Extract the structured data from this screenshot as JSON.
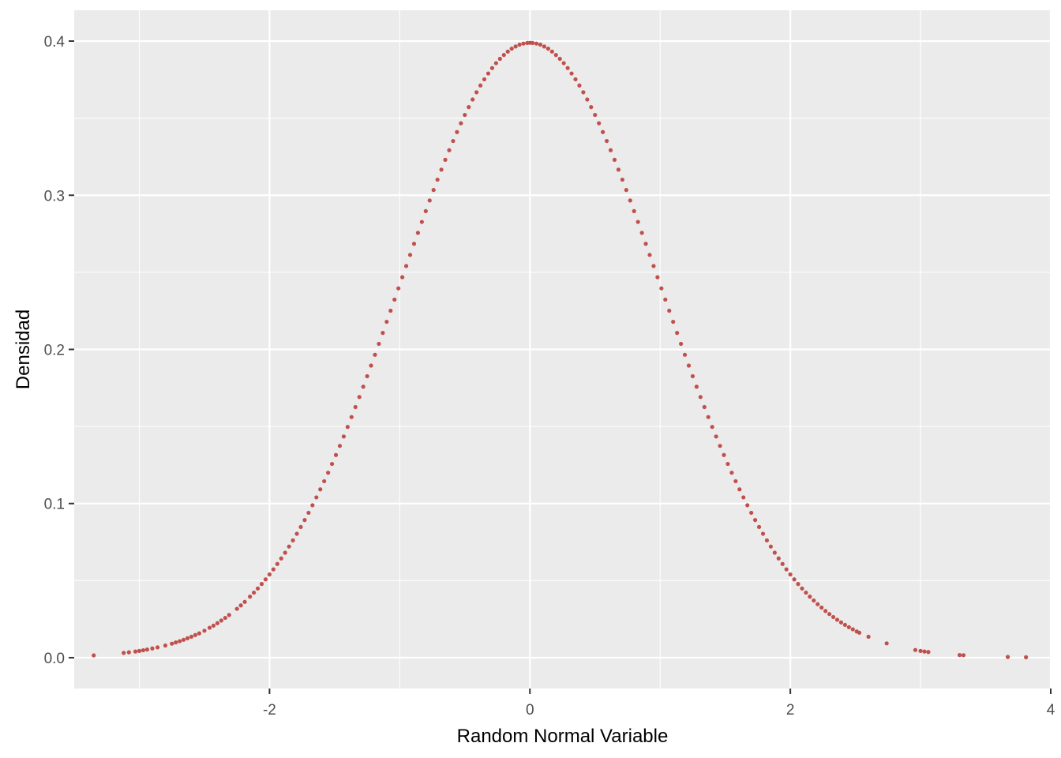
{
  "chart_data": {
    "type": "scatter",
    "title": "",
    "xlabel": "Random Normal Variable",
    "ylabel": "Densidad",
    "xlim": [
      -3.5,
      4.0
    ],
    "ylim": [
      -0.02,
      0.42
    ],
    "x_ticks": [
      -2,
      0,
      2,
      4
    ],
    "x_tick_labels": [
      "-2",
      "0",
      "2",
      "4"
    ],
    "y_ticks": [
      0.0,
      0.1,
      0.2,
      0.3,
      0.4
    ],
    "y_tick_labels": [
      "0.0",
      "0.1",
      "0.2",
      "0.3",
      "0.4"
    ],
    "grid": true,
    "legend": "none",
    "colors": {
      "panel_background": "#ebebeb",
      "grid_major": "#ffffff",
      "point": "#c0504d",
      "tick_label": "#4d4d4d",
      "axis_title": "#000000"
    },
    "series": [
      {
        "values_description_free": true,
        "points": [
          [
            -3.35,
            0.0015
          ],
          [
            -3.12,
            0.0031
          ],
          [
            -3.08,
            0.0035
          ],
          [
            -3.03,
            0.004
          ],
          [
            -3.0,
            0.0044
          ],
          [
            -2.97,
            0.0048
          ],
          [
            -2.94,
            0.0053
          ],
          [
            -2.9,
            0.006
          ],
          [
            -2.86,
            0.0067
          ],
          [
            -2.8,
            0.0079
          ],
          [
            -2.75,
            0.0091
          ],
          [
            -2.72,
            0.0099
          ],
          [
            -2.69,
            0.0107
          ],
          [
            -2.66,
            0.0116
          ],
          [
            -2.63,
            0.0126
          ],
          [
            -2.6,
            0.0136
          ],
          [
            -2.57,
            0.0147
          ],
          [
            -2.54,
            0.0158
          ],
          [
            -2.5,
            0.0175
          ],
          [
            -2.46,
            0.0194
          ],
          [
            -2.43,
            0.0208
          ],
          [
            -2.4,
            0.0224
          ],
          [
            -2.37,
            0.0241
          ],
          [
            -2.34,
            0.0258
          ],
          [
            -2.31,
            0.0277
          ],
          [
            -2.25,
            0.0317
          ],
          [
            -2.22,
            0.0339
          ],
          [
            -2.19,
            0.0362
          ],
          [
            -2.15,
            0.0396
          ],
          [
            -2.12,
            0.0422
          ],
          [
            -2.09,
            0.0449
          ],
          [
            -2.06,
            0.0478
          ],
          [
            -2.03,
            0.0508
          ],
          [
            -2.0,
            0.054
          ],
          [
            -1.97,
            0.0573
          ],
          [
            -1.94,
            0.0608
          ],
          [
            -1.91,
            0.0644
          ],
          [
            -1.88,
            0.0681
          ],
          [
            -1.85,
            0.0721
          ],
          [
            -1.82,
            0.0761
          ],
          [
            -1.79,
            0.0804
          ],
          [
            -1.76,
            0.0848
          ],
          [
            -1.73,
            0.0893
          ],
          [
            -1.7,
            0.094
          ],
          [
            -1.67,
            0.0989
          ],
          [
            -1.64,
            0.104
          ],
          [
            -1.61,
            0.1092
          ],
          [
            -1.58,
            0.1145
          ],
          [
            -1.55,
            0.12
          ],
          [
            -1.52,
            0.1257
          ],
          [
            -1.49,
            0.1315
          ],
          [
            -1.46,
            0.1374
          ],
          [
            -1.43,
            0.1435
          ],
          [
            -1.4,
            0.1497
          ],
          [
            -1.37,
            0.1561
          ],
          [
            -1.34,
            0.1626
          ],
          [
            -1.31,
            0.1691
          ],
          [
            -1.28,
            0.1758
          ],
          [
            -1.25,
            0.1826
          ],
          [
            -1.22,
            0.1895
          ],
          [
            -1.19,
            0.1965
          ],
          [
            -1.16,
            0.2036
          ],
          [
            -1.13,
            0.2107
          ],
          [
            -1.1,
            0.2179
          ],
          [
            -1.07,
            0.2251
          ],
          [
            -1.04,
            0.2323
          ],
          [
            -1.01,
            0.2396
          ],
          [
            -0.98,
            0.2468
          ],
          [
            -0.95,
            0.2541
          ],
          [
            -0.92,
            0.2613
          ],
          [
            -0.89,
            0.2685
          ],
          [
            -0.86,
            0.2756
          ],
          [
            -0.83,
            0.2827
          ],
          [
            -0.8,
            0.2897
          ],
          [
            -0.77,
            0.2966
          ],
          [
            -0.74,
            0.3034
          ],
          [
            -0.71,
            0.3101
          ],
          [
            -0.68,
            0.3166
          ],
          [
            -0.65,
            0.323
          ],
          [
            -0.62,
            0.3292
          ],
          [
            -0.59,
            0.3352
          ],
          [
            -0.56,
            0.341
          ],
          [
            -0.53,
            0.3467
          ],
          [
            -0.5,
            0.3521
          ],
          [
            -0.47,
            0.3572
          ],
          [
            -0.44,
            0.3621
          ],
          [
            -0.41,
            0.3668
          ],
          [
            -0.38,
            0.3712
          ],
          [
            -0.35,
            0.3752
          ],
          [
            -0.32,
            0.379
          ],
          [
            -0.29,
            0.3825
          ],
          [
            -0.26,
            0.3857
          ],
          [
            -0.23,
            0.3885
          ],
          [
            -0.2,
            0.391
          ],
          [
            -0.17,
            0.3932
          ],
          [
            -0.14,
            0.3951
          ],
          [
            -0.11,
            0.3965
          ],
          [
            -0.08,
            0.3977
          ],
          [
            -0.05,
            0.3984
          ],
          [
            -0.02,
            0.3988
          ],
          [
            0.0,
            0.3989
          ],
          [
            0.02,
            0.3988
          ],
          [
            0.05,
            0.3984
          ],
          [
            0.08,
            0.3977
          ],
          [
            0.11,
            0.3965
          ],
          [
            0.14,
            0.3951
          ],
          [
            0.17,
            0.3932
          ],
          [
            0.2,
            0.391
          ],
          [
            0.23,
            0.3885
          ],
          [
            0.26,
            0.3857
          ],
          [
            0.29,
            0.3825
          ],
          [
            0.32,
            0.379
          ],
          [
            0.35,
            0.3752
          ],
          [
            0.38,
            0.3712
          ],
          [
            0.41,
            0.3668
          ],
          [
            0.44,
            0.3621
          ],
          [
            0.47,
            0.3572
          ],
          [
            0.5,
            0.3521
          ],
          [
            0.53,
            0.3467
          ],
          [
            0.56,
            0.341
          ],
          [
            0.59,
            0.3352
          ],
          [
            0.62,
            0.3292
          ],
          [
            0.65,
            0.323
          ],
          [
            0.68,
            0.3166
          ],
          [
            0.71,
            0.3101
          ],
          [
            0.74,
            0.3034
          ],
          [
            0.77,
            0.2966
          ],
          [
            0.8,
            0.2897
          ],
          [
            0.83,
            0.2827
          ],
          [
            0.86,
            0.2756
          ],
          [
            0.89,
            0.2685
          ],
          [
            0.92,
            0.2613
          ],
          [
            0.95,
            0.2541
          ],
          [
            0.98,
            0.2468
          ],
          [
            1.01,
            0.2396
          ],
          [
            1.04,
            0.2323
          ],
          [
            1.07,
            0.2251
          ],
          [
            1.1,
            0.2179
          ],
          [
            1.13,
            0.2107
          ],
          [
            1.16,
            0.2036
          ],
          [
            1.19,
            0.1965
          ],
          [
            1.22,
            0.1895
          ],
          [
            1.25,
            0.1826
          ],
          [
            1.28,
            0.1758
          ],
          [
            1.31,
            0.1691
          ],
          [
            1.34,
            0.1626
          ],
          [
            1.37,
            0.1561
          ],
          [
            1.4,
            0.1497
          ],
          [
            1.43,
            0.1435
          ],
          [
            1.46,
            0.1374
          ],
          [
            1.49,
            0.1315
          ],
          [
            1.52,
            0.1257
          ],
          [
            1.55,
            0.12
          ],
          [
            1.58,
            0.1145
          ],
          [
            1.61,
            0.1092
          ],
          [
            1.64,
            0.104
          ],
          [
            1.67,
            0.0989
          ],
          [
            1.7,
            0.094
          ],
          [
            1.73,
            0.0893
          ],
          [
            1.76,
            0.0848
          ],
          [
            1.79,
            0.0804
          ],
          [
            1.82,
            0.0761
          ],
          [
            1.85,
            0.0721
          ],
          [
            1.88,
            0.0681
          ],
          [
            1.91,
            0.0644
          ],
          [
            1.94,
            0.0608
          ],
          [
            1.97,
            0.0573
          ],
          [
            2.0,
            0.054
          ],
          [
            2.03,
            0.0508
          ],
          [
            2.06,
            0.0478
          ],
          [
            2.09,
            0.0449
          ],
          [
            2.12,
            0.0422
          ],
          [
            2.15,
            0.0396
          ],
          [
            2.18,
            0.0371
          ],
          [
            2.21,
            0.0347
          ],
          [
            2.24,
            0.0325
          ],
          [
            2.27,
            0.0303
          ],
          [
            2.3,
            0.0283
          ],
          [
            2.33,
            0.0264
          ],
          [
            2.36,
            0.0246
          ],
          [
            2.39,
            0.0229
          ],
          [
            2.42,
            0.0213
          ],
          [
            2.45,
            0.0198
          ],
          [
            2.48,
            0.0184
          ],
          [
            2.51,
            0.017
          ],
          [
            2.53,
            0.0162
          ],
          [
            2.6,
            0.0136
          ],
          [
            2.74,
            0.0093
          ],
          [
            2.96,
            0.005
          ],
          [
            3.0,
            0.0044
          ],
          [
            3.03,
            0.004
          ],
          [
            3.06,
            0.0037
          ],
          [
            3.3,
            0.0017
          ],
          [
            3.33,
            0.0016
          ],
          [
            3.67,
            0.0005
          ],
          [
            3.81,
            0.0003
          ]
        ]
      }
    ]
  }
}
